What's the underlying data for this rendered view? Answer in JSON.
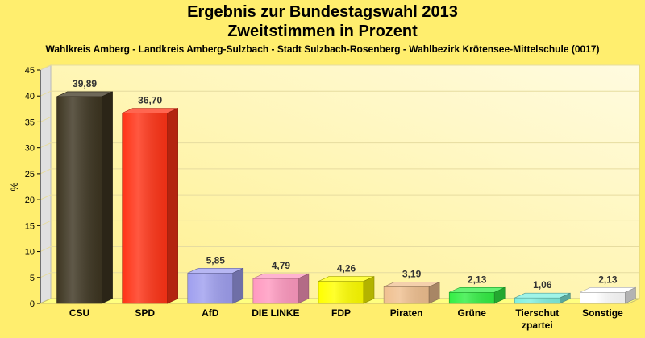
{
  "chart_data": {
    "type": "bar",
    "title": "Ergebnis zur Bundestagswahl 2013",
    "title2": "Zweitstimmen in Prozent",
    "subtitle": "Wahlkreis Amberg - Landkreis Amberg-Sulzbach - Stadt Sulzbach-Rosenberg - Wahlbezirk Krötensee-Mittelschule (0017)",
    "ylabel": "%",
    "ylim": [
      0,
      45
    ],
    "yticks": [
      "0",
      "5",
      "10",
      "15",
      "20",
      "25",
      "30",
      "35",
      "40",
      "45"
    ],
    "grid": true,
    "categories": [
      "CSU",
      "SPD",
      "AfD",
      "DIE LINKE",
      "FDP",
      "Piraten",
      "Grüne",
      "Tierschutzpartei",
      "Sonstige"
    ],
    "category_lines": [
      [
        "CSU"
      ],
      [
        "SPD"
      ],
      [
        "AfD"
      ],
      [
        "DIE LINKE"
      ],
      [
        "FDP"
      ],
      [
        "Piraten"
      ],
      [
        "Grüne"
      ],
      [
        "Tierschut",
        "zpartei"
      ],
      [
        "Sonstige"
      ]
    ],
    "values": [
      39.89,
      36.7,
      5.85,
      4.79,
      4.26,
      3.19,
      2.13,
      1.06,
      2.13
    ],
    "value_labels": [
      "39,89",
      "36,70",
      "5,85",
      "4,79",
      "4,26",
      "3,19",
      "2,13",
      "1,06",
      "2,13"
    ],
    "colors": [
      "#3d3521",
      "#ff3316",
      "#9f9fef",
      "#ff99c0",
      "#ffff00",
      "#f0c090",
      "#33ee44",
      "#80f0e0",
      "#ffffff"
    ],
    "background": "#ffee6e"
  }
}
